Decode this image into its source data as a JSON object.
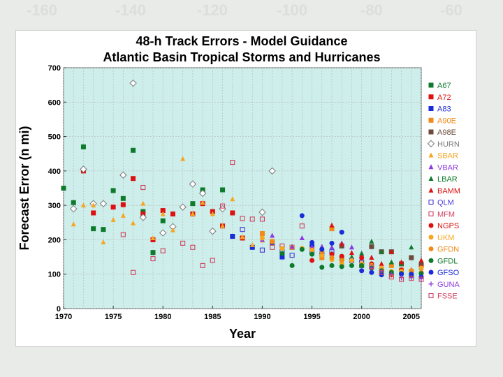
{
  "background": {
    "longitude_ticks": [
      "-160",
      "-140",
      "-120",
      "-100",
      "-80",
      "-60"
    ]
  },
  "colors": {
    "plot_bg": "#cdeeea",
    "grid": "#b7b7b7"
  },
  "chart_data": {
    "type": "scatter",
    "title": [
      "48-h Track Errors - Model Guidance",
      "Atlantic Basin Tropical Storms and Hurricanes"
    ],
    "xlabel": "Year",
    "ylabel": "Forecast Error (n mi)",
    "xlim": [
      1970,
      2006
    ],
    "ylim": [
      0,
      700
    ],
    "xticks": [
      1970,
      1975,
      1980,
      1985,
      1990,
      1995,
      2000,
      2005
    ],
    "yticks": [
      0,
      100,
      200,
      300,
      400,
      500,
      600,
      700
    ],
    "grid": true,
    "legend_position": "right",
    "series": [
      {
        "name": "A67",
        "color": "#0d7a2c",
        "marker": "square",
        "points": [
          [
            1970,
            350
          ],
          [
            1971,
            308
          ],
          [
            1972,
            470
          ],
          [
            1973,
            232
          ],
          [
            1974,
            230
          ],
          [
            1975,
            343
          ],
          [
            1976,
            320
          ],
          [
            1977,
            460
          ],
          [
            1978,
            282
          ],
          [
            1979,
            163
          ],
          [
            1980,
            255
          ],
          [
            1983,
            305
          ],
          [
            1984,
            345
          ],
          [
            1986,
            345
          ]
        ]
      },
      {
        "name": "A72",
        "color": "#dd1111",
        "marker": "square",
        "points": [
          [
            1972,
            400
          ],
          [
            1973,
            278
          ],
          [
            1975,
            295
          ],
          [
            1976,
            302
          ],
          [
            1977,
            378
          ],
          [
            1978,
            275
          ],
          [
            1979,
            200
          ],
          [
            1980,
            285
          ],
          [
            1981,
            275
          ],
          [
            1983,
            275
          ],
          [
            1984,
            305
          ],
          [
            1985,
            282
          ],
          [
            1986,
            240
          ],
          [
            1987,
            278
          ],
          [
            1988,
            205
          ]
        ]
      },
      {
        "name": "A83",
        "color": "#1a2bd8",
        "marker": "square",
        "points": [
          [
            1987,
            210
          ],
          [
            1989,
            178
          ],
          [
            1991,
            192
          ],
          [
            1992,
            150
          ],
          [
            1993,
            178
          ],
          [
            1995,
            180
          ],
          [
            1996,
            160
          ]
        ]
      },
      {
        "name": "A90E",
        "color": "#f08a18",
        "marker": "square",
        "points": [
          [
            1990,
            218
          ],
          [
            1991,
            195
          ],
          [
            1993,
            178
          ],
          [
            1995,
            172
          ],
          [
            1996,
            148
          ],
          [
            1997,
            232
          ],
          [
            1998,
            145
          ],
          [
            2000,
            130
          ],
          [
            2001,
            120
          ],
          [
            2002,
            110
          ],
          [
            2003,
            125
          ],
          [
            2004,
            112
          ],
          [
            2005,
            108
          ]
        ]
      },
      {
        "name": "A98E",
        "color": "#6b4a3a",
        "marker": "square",
        "points": [
          [
            1998,
            182
          ],
          [
            2000,
            125
          ],
          [
            2001,
            180
          ],
          [
            2002,
            165
          ],
          [
            2003,
            165
          ],
          [
            2004,
            130
          ],
          [
            2005,
            148
          ],
          [
            2006,
            128
          ]
        ]
      },
      {
        "name": "HURN",
        "color": "#7a7a7a",
        "marker": "diamond",
        "points": [
          [
            1971,
            290
          ],
          [
            1972,
            405
          ],
          [
            1973,
            305
          ],
          [
            1974,
            305
          ],
          [
            1976,
            388
          ],
          [
            1977,
            655
          ],
          [
            1978,
            265
          ],
          [
            1980,
            220
          ],
          [
            1981,
            238
          ],
          [
            1982,
            295
          ],
          [
            1983,
            362
          ],
          [
            1984,
            335
          ],
          [
            1985,
            225
          ],
          [
            1986,
            290
          ],
          [
            1990,
            280
          ],
          [
            1991,
            400
          ]
        ]
      },
      {
        "name": "SBAR",
        "color": "#f5a623",
        "marker": "triangle-up",
        "points": [
          [
            1971,
            245
          ],
          [
            1972,
            300
          ],
          [
            1973,
            300
          ],
          [
            1974,
            193
          ],
          [
            1975,
            258
          ],
          [
            1976,
            270
          ],
          [
            1977,
            248
          ],
          [
            1978,
            305
          ],
          [
            1979,
            205
          ],
          [
            1980,
            275
          ],
          [
            1981,
            228
          ],
          [
            1982,
            435
          ],
          [
            1983,
            275
          ],
          [
            1984,
            308
          ],
          [
            1985,
            275
          ],
          [
            1986,
            240
          ],
          [
            1987,
            318
          ],
          [
            1988,
            208
          ],
          [
            1989,
            185
          ],
          [
            1990,
            198
          ]
        ]
      },
      {
        "name": "VBAR",
        "color": "#8e3ae0",
        "marker": "triangle-up",
        "points": [
          [
            1990,
            200
          ],
          [
            1991,
            212
          ],
          [
            1993,
            180
          ],
          [
            1994,
            205
          ],
          [
            1995,
            178
          ],
          [
            1996,
            180
          ],
          [
            1997,
            178
          ],
          [
            1998,
            190
          ],
          [
            1999,
            178
          ],
          [
            2000,
            160
          ],
          [
            2001,
            148
          ]
        ]
      },
      {
        "name": "LBAR",
        "color": "#0d7a2c",
        "marker": "triangle-up",
        "points": [
          [
            1996,
            168
          ],
          [
            1997,
            160
          ],
          [
            1998,
            148
          ],
          [
            1999,
            150
          ],
          [
            2000,
            160
          ],
          [
            2001,
            195
          ],
          [
            2002,
            165
          ],
          [
            2003,
            135
          ],
          [
            2004,
            130
          ],
          [
            2005,
            178
          ],
          [
            2006,
            118
          ]
        ]
      },
      {
        "name": "BAMM",
        "color": "#dd1111",
        "marker": "triangle-up",
        "points": [
          [
            1997,
            242
          ],
          [
            1998,
            188
          ],
          [
            1999,
            162
          ],
          [
            2000,
            145
          ],
          [
            2001,
            148
          ],
          [
            2002,
            130
          ],
          [
            2003,
            165
          ],
          [
            2004,
            135
          ],
          [
            2005,
            112
          ],
          [
            2006,
            140
          ]
        ]
      },
      {
        "name": "QLM",
        "color": "#4a3ad8",
        "marker": "open-square",
        "points": [
          [
            1988,
            230
          ],
          [
            1990,
            170
          ],
          [
            1992,
            165
          ],
          [
            1993,
            155
          ],
          [
            1995,
            165
          ],
          [
            1997,
            165
          ],
          [
            1999,
            140
          ],
          [
            2000,
            135
          ]
        ]
      },
      {
        "name": "MFM",
        "color": "#d04060",
        "marker": "open-square",
        "points": [
          [
            1976,
            215
          ],
          [
            1977,
            105
          ],
          [
            1978,
            352
          ],
          [
            1979,
            145
          ],
          [
            1980,
            168
          ],
          [
            1982,
            190
          ],
          [
            1983,
            178
          ],
          [
            1984,
            125
          ],
          [
            1985,
            140
          ],
          [
            1986,
            298
          ],
          [
            1987,
            425
          ],
          [
            1988,
            262
          ],
          [
            1989,
            260
          ],
          [
            1990,
            260
          ],
          [
            1991,
            178
          ],
          [
            1992,
            182
          ],
          [
            1994,
            240
          ]
        ]
      },
      {
        "name": "NGPS",
        "color": "#dd1111",
        "marker": "circle",
        "points": [
          [
            1995,
            140
          ],
          [
            1997,
            158
          ],
          [
            1998,
            152
          ],
          [
            2000,
            148
          ],
          [
            2001,
            130
          ],
          [
            2002,
            118
          ],
          [
            2003,
            98
          ],
          [
            2004,
            112
          ],
          [
            2005,
            95
          ],
          [
            2006,
            120
          ]
        ]
      },
      {
        "name": "UKM",
        "color": "#f5a623",
        "marker": "circle",
        "points": [
          [
            1990,
            205
          ],
          [
            1992,
            175
          ],
          [
            1994,
            175
          ],
          [
            1995,
            170
          ],
          [
            1996,
            155
          ],
          [
            1997,
            142
          ],
          [
            1998,
            130
          ],
          [
            1999,
            140
          ],
          [
            2000,
            130
          ],
          [
            2001,
            125
          ],
          [
            2002,
            118
          ],
          [
            2003,
            108
          ],
          [
            2004,
            108
          ],
          [
            2005,
            110
          ],
          [
            2006,
            118
          ]
        ]
      },
      {
        "name": "GFDN",
        "color": "#f08a18",
        "marker": "circle",
        "points": [
          [
            1996,
            165
          ],
          [
            1997,
            148
          ],
          [
            1998,
            140
          ],
          [
            2000,
            125
          ],
          [
            2001,
            118
          ],
          [
            2002,
            108
          ],
          [
            2003,
            100
          ],
          [
            2004,
            102
          ],
          [
            2005,
            110
          ],
          [
            2006,
            105
          ]
        ]
      },
      {
        "name": "GFDL",
        "color": "#0d7a2c",
        "marker": "circle",
        "points": [
          [
            1992,
            160
          ],
          [
            1993,
            125
          ],
          [
            1994,
            172
          ],
          [
            1995,
            158
          ],
          [
            1996,
            120
          ],
          [
            1997,
            125
          ],
          [
            1998,
            122
          ],
          [
            1999,
            125
          ],
          [
            2000,
            125
          ],
          [
            2001,
            118
          ],
          [
            2002,
            110
          ],
          [
            2003,
            105
          ],
          [
            2004,
            102
          ],
          [
            2005,
            95
          ],
          [
            2006,
            102
          ]
        ]
      },
      {
        "name": "GFSO",
        "color": "#1a2bd8",
        "marker": "circle",
        "points": [
          [
            1994,
            270
          ],
          [
            1995,
            192
          ],
          [
            1996,
            172
          ],
          [
            1997,
            190
          ],
          [
            1998,
            222
          ],
          [
            2000,
            110
          ],
          [
            2001,
            105
          ],
          [
            2002,
            98
          ],
          [
            2004,
            100
          ],
          [
            2005,
            100
          ],
          [
            2006,
            92
          ]
        ]
      },
      {
        "name": "GUNA",
        "color": "#8e3ae0",
        "marker": "plus",
        "points": [
          [
            2001,
            118
          ],
          [
            2002,
            108
          ],
          [
            2003,
            100
          ],
          [
            2004,
            90
          ],
          [
            2005,
            90
          ],
          [
            2006,
            88
          ]
        ]
      },
      {
        "name": "FSSE",
        "color": "#d04060",
        "marker": "open-square",
        "points": [
          [
            2001,
            122
          ],
          [
            2002,
            105
          ],
          [
            2003,
            92
          ],
          [
            2004,
            85
          ],
          [
            2005,
            88
          ],
          [
            2006,
            85
          ]
        ]
      }
    ]
  }
}
